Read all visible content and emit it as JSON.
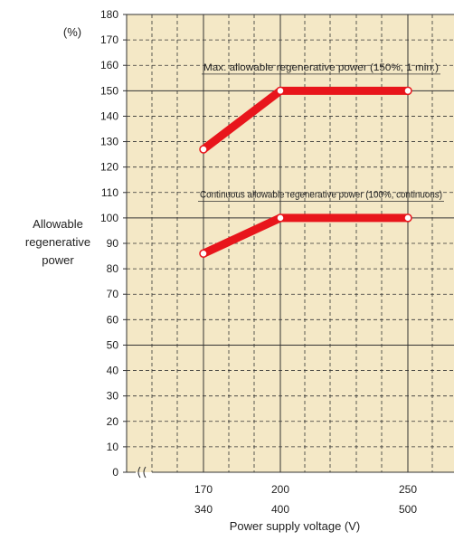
{
  "chart_data": {
    "type": "line",
    "y_unit": "(%)",
    "ylabel": [
      "Allowable",
      "regenerative",
      "power"
    ],
    "xlabel": "Power supply voltage (V)",
    "ylim": [
      0,
      180
    ],
    "y_ticks": [
      0,
      10,
      20,
      30,
      40,
      50,
      60,
      70,
      80,
      90,
      100,
      110,
      120,
      130,
      140,
      150,
      160,
      170,
      180
    ],
    "xlim": [
      160,
      260
    ],
    "x_ticks": [
      {
        "x": 170,
        "upper": "170",
        "lower": "340"
      },
      {
        "x": 200,
        "upper": "200",
        "lower": "400"
      },
      {
        "x": 250,
        "upper": "250",
        "lower": "500"
      }
    ],
    "axis_break": true,
    "grid": true,
    "series": [
      {
        "name": "Max. allowable regenerative power (150%, 1 min.)",
        "x": [
          170,
          200,
          250
        ],
        "y": [
          127,
          150,
          150
        ],
        "label_y": 158
      },
      {
        "name": "Continuous allowable regenerative power (100%, continuous)",
        "x": [
          170,
          200,
          250
        ],
        "y": [
          86,
          100,
          100
        ],
        "label_y": 108
      }
    ]
  },
  "colors": {
    "plot_background": "#F4E8C6",
    "grid_major": "#333333",
    "grid_minor": "#333333",
    "line": "#E8151B",
    "marker_fill": "#FFFFFF",
    "text": "#222222"
  }
}
